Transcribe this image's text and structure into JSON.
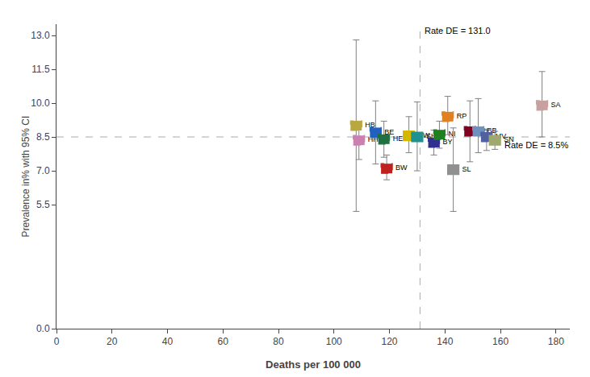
{
  "chart_data": {
    "type": "scatter",
    "marker": "square",
    "grid": false,
    "xlabel": "Deaths per 100 000",
    "ylabel": "Prevalence in% with 95% CI",
    "xlim": [
      0,
      185
    ],
    "ylim": [
      0.0,
      13.5
    ],
    "xticks": [
      0,
      20,
      40,
      60,
      80,
      100,
      120,
      140,
      160,
      180
    ],
    "yticks": [
      {
        "value": 0.0,
        "label": "0.0"
      },
      5.5,
      {
        "value": 7.0,
        "label": "7.0"
      },
      8.5,
      {
        "value": 10.0,
        "label": "10.0"
      },
      11.5,
      {
        "value": 13.0,
        "label": "13.0"
      }
    ],
    "reference_lines": [
      {
        "x": 131.0,
        "label": "Rate DE = 131.0"
      },
      {
        "y": 8.5,
        "label": "Rate DE = 8.5%"
      }
    ],
    "series": [
      {
        "name": "HB",
        "color": "#b8a840",
        "line_style": "dashed",
        "x": [
          108
        ],
        "values": [
          9.0
        ],
        "y_lo": [
          5.2
        ],
        "y_hi": [
          12.8
        ]
      },
      {
        "name": "HH",
        "color": "#cc80b0",
        "line_style": "dashed",
        "x": [
          109
        ],
        "values": [
          8.35
        ],
        "y_lo": [
          7.5
        ],
        "y_hi": [
          9.2
        ]
      },
      {
        "name": "BE",
        "color": "#2060c0",
        "line_style": "dashed",
        "x": [
          115
        ],
        "values": [
          8.7
        ],
        "y_lo": [
          7.3
        ],
        "y_hi": [
          10.1
        ]
      },
      {
        "name": "HE",
        "color": "#207040",
        "line_style": "dashed",
        "x": [
          118
        ],
        "values": [
          8.4
        ],
        "y_lo": [
          7.6
        ],
        "y_hi": [
          9.2
        ]
      },
      {
        "name": "BW",
        "color": "#c02020",
        "line_style": "dashed",
        "x": [
          119
        ],
        "values": [
          7.1
        ],
        "y_lo": [
          6.6
        ],
        "y_hi": [
          7.7
        ]
      },
      {
        "name": "NW",
        "color": "#d4b800",
        "line_style": "solid",
        "x": [
          127
        ],
        "values": [
          8.55
        ],
        "y_lo": [
          7.8
        ],
        "y_hi": [
          9.4
        ]
      },
      {
        "name": "SH",
        "color": "#209090",
        "line_style": "solid",
        "x": [
          130
        ],
        "values": [
          8.5
        ],
        "y_lo": [
          7.0
        ],
        "y_hi": [
          10.05
        ]
      },
      {
        "name": "BY",
        "color": "#303090",
        "line_style": "dashed",
        "x": [
          136
        ],
        "values": [
          8.25
        ],
        "y_lo": [
          7.7
        ],
        "y_hi": [
          8.8
        ]
      },
      {
        "name": "NI",
        "color": "#208020",
        "line_style": "dashed",
        "x": [
          138
        ],
        "values": [
          8.6
        ],
        "y_lo": [
          8.0
        ],
        "y_hi": [
          9.2
        ]
      },
      {
        "name": "RP",
        "color": "#e08020",
        "line_style": "dashed",
        "x": [
          141
        ],
        "values": [
          9.4
        ],
        "y_lo": [
          8.6
        ],
        "y_hi": [
          10.3
        ]
      },
      {
        "name": "SL",
        "color": "#909090",
        "line_style": "solid",
        "x": [
          143
        ],
        "values": [
          7.05
        ],
        "y_lo": [
          5.2
        ],
        "y_hi": [
          8.9
        ]
      },
      {
        "name": "TH",
        "color": "#800020",
        "line_style": "dashed",
        "x": [
          149
        ],
        "values": [
          8.75
        ],
        "y_lo": [
          7.4
        ],
        "y_hi": [
          10.1
        ]
      },
      {
        "name": "BB",
        "color": "#7090c0",
        "line_style": "dashed",
        "x": [
          152
        ],
        "values": [
          8.75
        ],
        "y_lo": [
          7.8
        ],
        "y_hi": [
          10.2
        ]
      },
      {
        "name": "MV",
        "color": "#5060a0",
        "line_style": "dashed",
        "x": [
          155
        ],
        "values": [
          8.5
        ],
        "y_lo": [
          7.9
        ],
        "y_hi": [
          8.85
        ]
      },
      {
        "name": "SN",
        "color": "#a0a870",
        "line_style": "solid",
        "x": [
          158
        ],
        "values": [
          8.35
        ],
        "y_lo": [
          7.95
        ],
        "y_hi": [
          8.75
        ]
      },
      {
        "name": "SA",
        "color": "#c8a0a0",
        "line_style": "dashed",
        "x": [
          175
        ],
        "values": [
          9.9
        ],
        "y_lo": [
          8.5
        ],
        "y_hi": [
          11.4
        ]
      }
    ]
  }
}
